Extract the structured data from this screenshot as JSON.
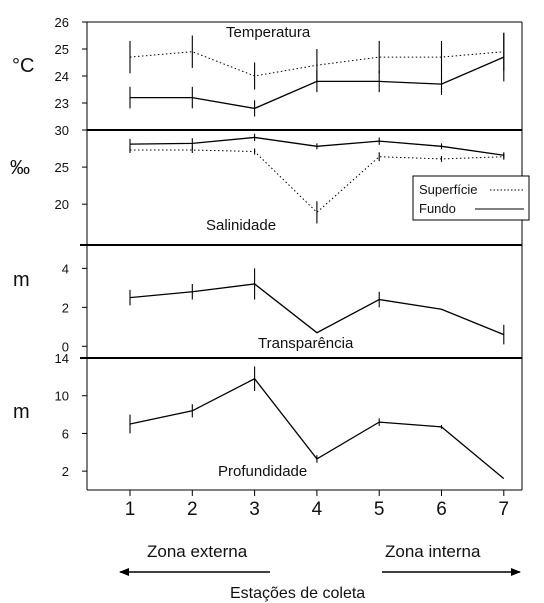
{
  "chart_data": {
    "type": "line",
    "x": [
      1,
      2,
      3,
      4,
      5,
      6,
      7
    ],
    "xlabel": "Estações de coleta",
    "zones": {
      "left": "Zona externa",
      "right": "Zona interna"
    },
    "legend": {
      "position": "right",
      "surface": "Superfície",
      "bottom": "Fundo"
    },
    "panels": [
      {
        "key": "temp",
        "title": "Temperatura",
        "unit": "°C",
        "ylim": [
          22,
          26
        ],
        "yticks": [
          {
            "v": 23,
            "label": "23"
          },
          {
            "v": 24,
            "label": "24"
          },
          {
            "v": 25,
            "label": "25"
          },
          {
            "v": 26,
            "label": "26"
          }
        ],
        "series": [
          {
            "name": "Superfície",
            "style": "dotted",
            "values": [
              24.7,
              24.9,
              24.0,
              24.4,
              24.7,
              24.7,
              24.9
            ],
            "err": [
              0.6,
              0.6,
              0.5,
              0.6,
              0.6,
              0.6,
              0.7
            ]
          },
          {
            "name": "Fundo",
            "style": "solid",
            "values": [
              23.2,
              23.2,
              22.8,
              23.8,
              23.8,
              23.7,
              24.7
            ],
            "err": [
              0.4,
              0.4,
              0.3,
              0.4,
              0.4,
              0.4,
              0.9
            ]
          }
        ]
      },
      {
        "key": "sal",
        "title": "Salinidade",
        "unit": "‰",
        "ylim": [
          14.5,
          30
        ],
        "yticks": [
          {
            "v": 20,
            "label": "20"
          },
          {
            "v": 25,
            "label": "25"
          },
          {
            "v": 30,
            "label": "30"
          }
        ],
        "series": [
          {
            "name": "Superfície",
            "style": "dotted",
            "values": [
              27.3,
              27.3,
              27.1,
              18.9,
              26.4,
              26.1,
              26.4
            ],
            "err": [
              0.4,
              0.4,
              0.4,
              1.5,
              0.6,
              0.4,
              0.4
            ]
          },
          {
            "name": "Fundo",
            "style": "solid",
            "values": [
              28.1,
              28.2,
              29.0,
              27.8,
              28.5,
              27.8,
              26.6
            ],
            "err": [
              0.7,
              0.7,
              0.5,
              0.4,
              0.5,
              0.4,
              0.4
            ]
          }
        ]
      },
      {
        "key": "transp",
        "title": "Transparência",
        "unit": "m",
        "ylim": [
          -0.6,
          5.2
        ],
        "yticks": [
          {
            "v": 0,
            "label": "0"
          },
          {
            "v": 2,
            "label": "2"
          },
          {
            "v": 4,
            "label": "4"
          }
        ],
        "series": [
          {
            "name": "Fundo",
            "style": "solid",
            "values": [
              2.5,
              2.8,
              3.2,
              0.7,
              2.4,
              1.9,
              0.6
            ],
            "err": [
              0.4,
              0.4,
              0.8,
              0,
              0.4,
              0,
              0.5
            ]
          }
        ]
      },
      {
        "key": "prof",
        "title": "Profundidade",
        "unit": "m",
        "ylim": [
          0,
          14
        ],
        "yticks": [
          {
            "v": 2,
            "label": "2"
          },
          {
            "v": 6,
            "label": "6"
          },
          {
            "v": 10,
            "label": "10"
          },
          {
            "v": 14,
            "label": "14"
          }
        ],
        "series": [
          {
            "name": "Fundo",
            "style": "solid",
            "values": [
              7.0,
              8.4,
              11.8,
              3.3,
              7.2,
              6.7,
              1.2
            ],
            "err": [
              1.0,
              0.7,
              1.3,
              0.4,
              0.4,
              0.2,
              0
            ]
          }
        ]
      }
    ]
  }
}
